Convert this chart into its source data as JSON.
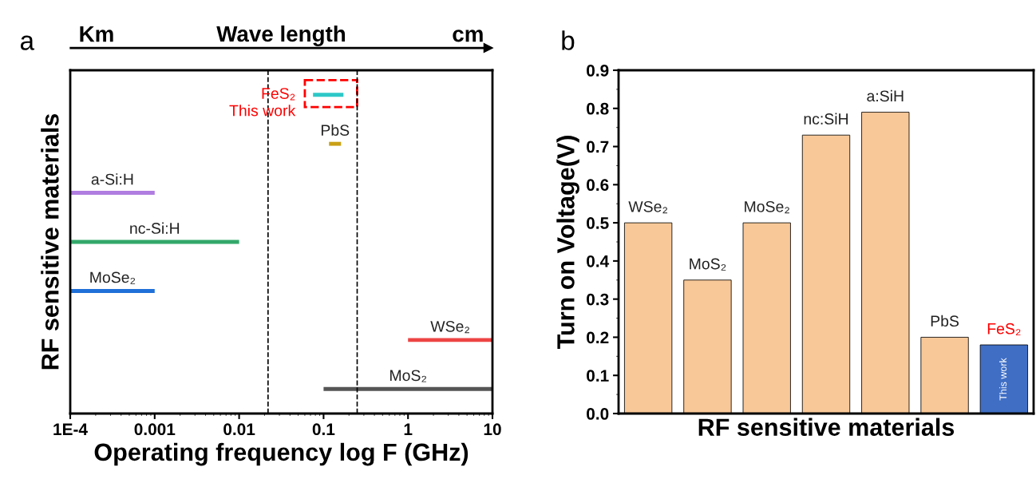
{
  "chart_data": [
    {
      "type": "bar",
      "title": "a",
      "orientation": "horizontal",
      "log": "x",
      "categories": [
        "FeS₂",
        "PbS",
        "a-Si:H",
        "nc-Si:H",
        "MoSe₂",
        "WSe₂",
        "MoS₂"
      ],
      "base": [
        0.075,
        0.116,
        0.0001,
        0.0001,
        0.0001,
        1,
        0.1
      ],
      "values": [
        0.097,
        0.045,
        0.0009,
        0.0099,
        0.0009,
        9,
        9.9
      ],
      "colors": [
        "#2ec8c8",
        "#c9a015",
        "#b07de0",
        "#33a86a",
        "#2070d8",
        "#ee4444",
        "#555555"
      ],
      "xlim": [
        0.0001,
        10
      ],
      "xticks": [
        {
          "value": 0.0001,
          "label": "1E-4"
        },
        0.001,
        0.01,
        0.1,
        1,
        10
      ],
      "xlabel": "Operating frequency log F (GHz)",
      "ylabel": "RF sensitive materials",
      "tick_labels": "x",
      "ref_lines": [
        {
          "axis": "x",
          "value": 0.022,
          "color": "#000000",
          "line_style": "dashed"
        },
        {
          "axis": "x",
          "value": 0.25,
          "color": "#000000",
          "line_style": "dashed"
        }
      ],
      "annotations": [
        "Km",
        "Wave length",
        "cm",
        "This work"
      ]
    },
    {
      "type": "bar",
      "title": "b",
      "categories": [
        "WSe₂",
        "MoS₂",
        "MoSe₂",
        "nc:SiH",
        "a:SiH",
        "PbS",
        "FeS₂"
      ],
      "values": [
        0.5,
        0.35,
        0.5,
        0.73,
        0.79,
        0.2,
        0.18
      ],
      "colors": [
        "#f9c898",
        "#f9c898",
        "#f9c898",
        "#f9c898",
        "#f9c898",
        "#f9c898",
        "#3f6ec4"
      ],
      "ylim": [
        0,
        0.9
      ],
      "yticks": [
        {
          "value": 0,
          "label": "0.0"
        },
        0.1,
        0.2,
        0.3,
        0.4,
        0.5,
        0.6,
        0.7,
        0.8,
        0.9
      ],
      "xlabel": "RF sensitive materials",
      "ylabel": "Turn on Voltage(V)",
      "tick_labels": "y",
      "annotations": [
        "This work"
      ]
    }
  ]
}
